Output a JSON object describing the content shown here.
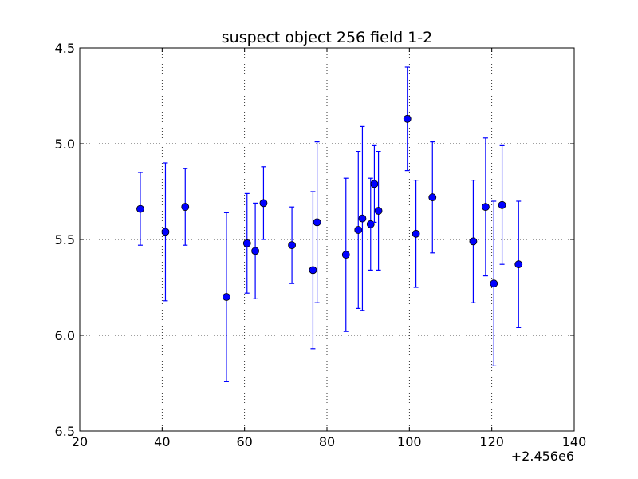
{
  "chart_data": {
    "type": "scatter",
    "title": "suspect object 256 field 1-2",
    "xlabel": "",
    "ylabel": "",
    "x_offset_label": "+2.456e6",
    "xlim": [
      20,
      140
    ],
    "ylim": [
      6.5,
      4.5
    ],
    "y_inverted": true,
    "grid": true,
    "x_ticks": [
      20,
      40,
      60,
      80,
      100,
      120,
      140
    ],
    "x_tick_labels": [
      "20",
      "40",
      "60",
      "80",
      "100",
      "120",
      "140"
    ],
    "y_ticks": [
      4.5,
      5.0,
      5.5,
      6.0,
      6.5
    ],
    "y_tick_labels": [
      "4.5",
      "5.0",
      "5.5",
      "6.0",
      "6.5"
    ],
    "series": [
      {
        "color": "#0000ff",
        "points": [
          {
            "x": 2456034.7,
            "y": 5.34,
            "err": 0.19
          },
          {
            "x": 2456040.8,
            "y": 5.46,
            "err": 0.36
          },
          {
            "x": 2456045.6,
            "y": 5.33,
            "err": 0.2
          },
          {
            "x": 2456055.6,
            "y": 5.8,
            "err": 0.44
          },
          {
            "x": 2456060.6,
            "y": 5.52,
            "err": 0.26
          },
          {
            "x": 2456062.6,
            "y": 5.56,
            "err": 0.25
          },
          {
            "x": 2456064.6,
            "y": 5.31,
            "err": 0.19
          },
          {
            "x": 2456071.5,
            "y": 5.53,
            "err": 0.2
          },
          {
            "x": 2456076.6,
            "y": 5.66,
            "err": 0.41
          },
          {
            "x": 2456077.6,
            "y": 5.41,
            "err": 0.42
          },
          {
            "x": 2456084.6,
            "y": 5.58,
            "err": 0.4
          },
          {
            "x": 2456087.6,
            "y": 5.45,
            "err": 0.41
          },
          {
            "x": 2456088.6,
            "y": 5.39,
            "err": 0.48
          },
          {
            "x": 2456090.6,
            "y": 5.42,
            "err": 0.24
          },
          {
            "x": 2456091.5,
            "y": 5.21,
            "err": 0.2
          },
          {
            "x": 2456092.5,
            "y": 5.35,
            "err": 0.31
          },
          {
            "x": 2456099.5,
            "y": 4.87,
            "err": 0.27
          },
          {
            "x": 2456101.6,
            "y": 5.47,
            "err": 0.28
          },
          {
            "x": 2456105.6,
            "y": 5.28,
            "err": 0.29
          },
          {
            "x": 2456115.5,
            "y": 5.51,
            "err": 0.32
          },
          {
            "x": 2456118.5,
            "y": 5.33,
            "err": 0.36
          },
          {
            "x": 2456120.5,
            "y": 5.73,
            "err": 0.43
          },
          {
            "x": 2456122.5,
            "y": 5.32,
            "err": 0.31
          },
          {
            "x": 2456126.5,
            "y": 5.63,
            "err": 0.33
          }
        ]
      }
    ]
  }
}
